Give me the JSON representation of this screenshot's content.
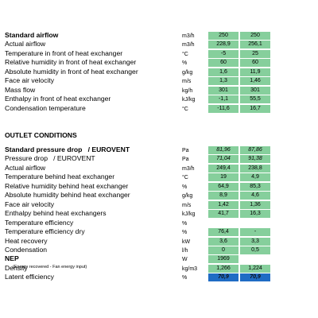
{
  "sections": [
    {
      "rows": [
        {
          "label": "Standard airflow",
          "unit": "m3/h",
          "values": [
            "250",
            "250"
          ],
          "bold": true
        },
        {
          "label": "Actual airflow",
          "unit": "m3/h",
          "values": [
            "228,9",
            "256,1"
          ]
        },
        {
          "label": "Temperature in front of heat exchanger",
          "unit": "°C",
          "values": [
            "-5",
            "25"
          ]
        },
        {
          "label": "Relative humidity in front of heat exchanger",
          "unit": "%",
          "values": [
            "60",
            "60"
          ]
        },
        {
          "label": "Absolute humidity in front of heat exchanger",
          "unit": "g/kg",
          "values": [
            "1,6",
            "11,9"
          ]
        },
        {
          "label": "Face air velocity",
          "unit": "m/s",
          "values": [
            "1,3",
            "1,46"
          ]
        },
        {
          "label": "Mass flow",
          "unit": "kg/h",
          "values": [
            "301",
            "301"
          ]
        },
        {
          "label": "Enthalpy in front of heat exchanger",
          "unit": "kJ/kg",
          "values": [
            "-1,1",
            "55,5"
          ]
        },
        {
          "label": "Condensation temperature",
          "unit": "°C",
          "values": [
            "-11,6",
            "16,7"
          ]
        }
      ]
    },
    {
      "title": "OUTLET CONDITIONS",
      "rows": [
        {
          "label": "Standard pressure drop   / EUROVENT",
          "unit": "Pa",
          "values": [
            "81,96",
            "87,86"
          ],
          "bold": true,
          "italic": true
        },
        {
          "label": "Pressure drop   / EUROVENT",
          "unit": "Pa",
          "values": [
            "71,04",
            "91,38"
          ],
          "italic": true
        },
        {
          "label": "Actual airflow",
          "unit": "m3/h",
          "values": [
            "249,4",
            "238,8"
          ]
        },
        {
          "label": "Temperature behind heat exchanger",
          "unit": "°C",
          "values": [
            "19",
            "4,9"
          ]
        },
        {
          "label": "Relative humidity behind heat exchanger",
          "unit": "%",
          "values": [
            "64,9",
            "85,3"
          ]
        },
        {
          "label": "Absolute humidity behind heat exchanger",
          "unit": "g/kg",
          "values": [
            "8,9",
            "4,6"
          ]
        },
        {
          "label": "Face air velocity",
          "unit": "m/s",
          "values": [
            "1,42",
            "1,36"
          ]
        },
        {
          "label": "Enthalpy behind heat exchangers",
          "unit": "kJ/kg",
          "values": [
            "41,7",
            "16,3"
          ]
        },
        {
          "label": "Temperature efficiency",
          "unit": "%",
          "values": []
        },
        {
          "label": "Temperature efficiency dry",
          "unit": "%",
          "values": [
            "76,4",
            "-"
          ]
        },
        {
          "label": "Heat recovery",
          "unit": "kW",
          "values": [
            "3,6",
            "3,3"
          ]
        },
        {
          "label": "Condensation",
          "unit": "l/h",
          "values": [
            "0",
            "0,5"
          ]
        },
        {
          "label": "NEP",
          "note": "(Energy recovered - Fan energy input)",
          "unit": "W",
          "values": [
            "1969"
          ],
          "bold": true
        },
        {
          "label": "Density",
          "unit": "kg/m3",
          "values": [
            "1,266",
            "1,224"
          ]
        },
        {
          "label": "Latent efficiency",
          "unit": "%",
          "values": [
            "70,9",
            "70,9"
          ],
          "highlight": true
        }
      ]
    }
  ]
}
